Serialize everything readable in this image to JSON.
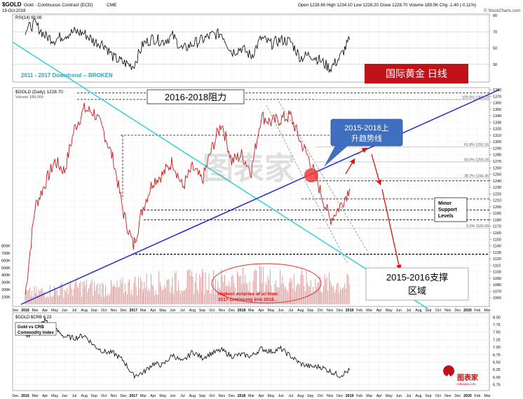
{
  "header": {
    "symbol": "$GOLD",
    "name": "Gold - Continuous Contract (ECD)",
    "exchange": "CME",
    "date": "19-Oct-2018",
    "quote": "Open 1228.60  High 1234.10  Low 1228.20  Close 1228.70  Volume 189.0K  Chg -1.40 (-0.11%)",
    "credit": "© StockCharts.com"
  },
  "annotations": {
    "downtrend_broken": "2011 - 2017 Downtrend -- BROKEN",
    "title_cn": "国际黄金  日线",
    "resistance_cn": "2016-2018阻力",
    "uptrend_line1": "2015-2018上",
    "uptrend_line2": "升趋势线",
    "support_line1": "2015-2016支撑",
    "support_line2": "区域",
    "minor_support": [
      "Minor",
      "Support",
      "Levels"
    ],
    "volume_note1": "Highest volumes of all time:",
    "volume_note2": "2017 continuing into 2018...",
    "watermark": "图表家",
    "logo_text": "图表家",
    "logo_sub": "tubiaojia.com"
  },
  "chart_data": [
    {
      "type": "line",
      "name": "rsi",
      "label": "RSI(14) 60.08",
      "ylim": [
        10,
        90
      ],
      "ticks": [
        30,
        50,
        70,
        90
      ],
      "x": [
        "2016-01",
        "2016-02",
        "2016-03",
        "2016-04",
        "2016-05",
        "2016-06",
        "2016-07",
        "2016-08",
        "2016-09",
        "2016-10",
        "2016-11",
        "2016-12",
        "2017-01",
        "2017-02",
        "2017-03",
        "2017-04",
        "2017-05",
        "2017-06",
        "2017-07",
        "2017-08",
        "2017-09",
        "2017-10",
        "2017-11",
        "2017-12",
        "2018-01",
        "2018-02",
        "2018-03",
        "2018-04",
        "2018-05",
        "2018-06",
        "2018-07",
        "2018-08",
        "2018-09",
        "2018-10"
      ],
      "values": [
        72,
        80,
        65,
        60,
        66,
        70,
        68,
        58,
        55,
        38,
        32,
        28,
        55,
        62,
        58,
        65,
        48,
        55,
        60,
        66,
        68,
        45,
        50,
        40,
        62,
        55,
        60,
        58,
        38,
        42,
        35,
        25,
        38,
        60
      ]
    },
    {
      "type": "line",
      "name": "price",
      "label": "$GOLD (Daily) 1228.70",
      "volume_label": "Volume 189,000",
      "ylim": [
        1050,
        1380
      ],
      "y_ticks": [
        1060,
        1070,
        1080,
        1090,
        1100,
        1110,
        1120,
        1130,
        1140,
        1150,
        1160,
        1170,
        1180,
        1190,
        1200,
        1210,
        1220,
        1230,
        1240,
        1250,
        1260,
        1270,
        1280,
        1290,
        1300,
        1310,
        1320,
        1330,
        1340,
        1350,
        1360,
        1370,
        1380
      ],
      "x": [
        "2016-01",
        "2016-02",
        "2016-03",
        "2016-04",
        "2016-05",
        "2016-06",
        "2016-07",
        "2016-08",
        "2016-09",
        "2016-10",
        "2016-11",
        "2016-12",
        "2017-01",
        "2017-02",
        "2017-03",
        "2017-04",
        "2017-05",
        "2017-06",
        "2017-07",
        "2017-08",
        "2017-09",
        "2017-10",
        "2017-11",
        "2017-12",
        "2018-01",
        "2018-02",
        "2018-03",
        "2018-04",
        "2018-05",
        "2018-06",
        "2018-07",
        "2018-08",
        "2018-09",
        "2018-10"
      ],
      "values": [
        1065,
        1200,
        1235,
        1270,
        1255,
        1320,
        1350,
        1345,
        1315,
        1270,
        1190,
        1140,
        1200,
        1240,
        1250,
        1270,
        1230,
        1260,
        1240,
        1290,
        1330,
        1270,
        1280,
        1255,
        1340,
        1330,
        1335,
        1340,
        1300,
        1270,
        1225,
        1180,
        1200,
        1228
      ],
      "fib_levels": [
        {
          "label": "100.0% 1365.23",
          "value": 1365
        },
        {
          "label": "61.8% 1292.16",
          "value": 1292
        },
        {
          "label": "50.0% 1269.26",
          "value": 1269
        },
        {
          "label": "38.2% 1244.36",
          "value": 1244
        },
        {
          "label": "0.0% 1166.99",
          "value": 1167
        }
      ],
      "horizontal_levels": [
        1375,
        1365,
        1310,
        1240,
        1212,
        1195,
        1180,
        1127
      ],
      "x_tick_labels": [
        "Dec",
        "2016",
        "Mar",
        "Apr",
        "May",
        "Jun",
        "Jul",
        "Aug",
        "Sep",
        "Oct",
        "Nov",
        "Dec",
        "2017",
        "Mar",
        "Apr",
        "May",
        "Jun",
        "Jul",
        "Aug",
        "Sep",
        "Oct",
        "Nov",
        "Dec",
        "2018",
        "Mar",
        "Apr",
        "May",
        "Jun",
        "Jul",
        "Aug",
        "Sep",
        "Oct",
        "Nov",
        "Dec",
        "2019",
        "Feb",
        "Mar",
        "Apr",
        "May",
        "Jun",
        "Jul",
        "Aug",
        "Sep",
        "Oct",
        "Nov",
        "Dec",
        "2020",
        "Feb",
        "Mar"
      ],
      "volume": {
        "ylim": [
          0,
          900
        ],
        "ticks": [
          100,
          200,
          300,
          400,
          500,
          600,
          700,
          800
        ],
        "tick_labels": [
          "100K",
          "200K",
          "300K",
          "400K",
          "500K",
          "600K",
          "700K",
          "800K"
        ],
        "x": [
          "2016-01",
          "2016-04",
          "2016-07",
          "2016-10",
          "2017-01",
          "2017-04",
          "2017-07",
          "2017-10",
          "2018-01",
          "2018-04",
          "2018-07",
          "2018-10"
        ],
        "values": [
          150,
          200,
          250,
          220,
          300,
          310,
          330,
          340,
          360,
          320,
          300,
          280
        ]
      }
    },
    {
      "type": "line",
      "name": "ratio",
      "label": "$GOLD:$CRB 6.23",
      "legend": [
        "Gold vs CRB",
        "Commodity Index"
      ],
      "ylim": [
        5.6,
        8.1
      ],
      "ticks": [
        5.75,
        6.0,
        6.25,
        6.5,
        6.75,
        7.0,
        7.25,
        7.5,
        7.75,
        8.0
      ],
      "tick_labels": [
        "5.75",
        "6.00",
        "6.25",
        "6.50",
        "6.75",
        "7.00",
        "7.25",
        "7.50",
        "7.75",
        "8.00"
      ],
      "x": [
        "2016-01",
        "2016-02",
        "2016-03",
        "2016-04",
        "2016-05",
        "2016-06",
        "2016-07",
        "2016-08",
        "2016-09",
        "2016-10",
        "2016-11",
        "2016-12",
        "2017-01",
        "2017-02",
        "2017-03",
        "2017-04",
        "2017-05",
        "2017-06",
        "2017-07",
        "2017-08",
        "2017-09",
        "2017-10",
        "2017-11",
        "2017-12",
        "2018-01",
        "2018-02",
        "2018-03",
        "2018-04",
        "2018-05",
        "2018-06",
        "2018-07",
        "2018-08",
        "2018-09",
        "2018-10"
      ],
      "values": [
        7.35,
        7.55,
        7.9,
        7.6,
        7.35,
        7.3,
        7.4,
        7.05,
        6.85,
        6.8,
        6.55,
        6.05,
        6.15,
        6.45,
        6.4,
        6.75,
        6.5,
        6.85,
        6.65,
        6.8,
        6.9,
        6.7,
        6.75,
        6.7,
        6.95,
        6.85,
        6.95,
        6.7,
        6.45,
        6.35,
        6.35,
        6.2,
        6.05,
        6.23
      ]
    }
  ],
  "colors": {
    "price": "#d11919",
    "trend_blue": "#1d2ad6",
    "trend_cyan": "#2fd2d6",
    "arrow_red": "#e01010",
    "title_bg": "#c1121a",
    "downtrend_text": "#1fa8e0"
  }
}
